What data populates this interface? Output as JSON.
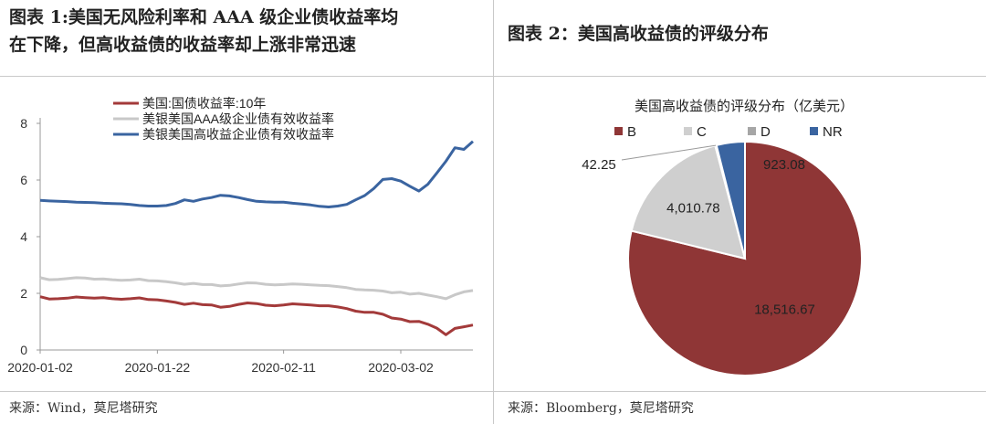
{
  "left_panel": {
    "title_line1": "图表 1:美国无风险利率和 AAA 级企业债收益率均",
    "title_line2": "在下降，但高收益债的收益率却上涨非常迅速",
    "source": "来源：Wind，莫尼塔研究"
  },
  "right_panel": {
    "title": "图表 2：美国高收益债的评级分布",
    "source": "来源：Bloomberg，莫尼塔研究"
  },
  "chart_data": [
    {
      "type": "line",
      "title": "",
      "xlabel": "",
      "ylabel": "",
      "ylim": [
        0,
        8
      ],
      "yticks": [
        "0",
        "2",
        "4",
        "6",
        "8"
      ],
      "xticks": [
        "2020-01-02",
        "2020-01-22",
        "2020-02-11",
        "2020-03-02"
      ],
      "grid": false,
      "legend_position": "top-left",
      "x": [
        "2020-01-02",
        "2020-01-03",
        "2020-01-06",
        "2020-01-07",
        "2020-01-08",
        "2020-01-09",
        "2020-01-10",
        "2020-01-13",
        "2020-01-14",
        "2020-01-15",
        "2020-01-16",
        "2020-01-17",
        "2020-01-21",
        "2020-01-22",
        "2020-01-23",
        "2020-01-24",
        "2020-01-27",
        "2020-01-28",
        "2020-01-29",
        "2020-01-30",
        "2020-01-31",
        "2020-02-03",
        "2020-02-04",
        "2020-02-05",
        "2020-02-06",
        "2020-02-07",
        "2020-02-10",
        "2020-02-11",
        "2020-02-12",
        "2020-02-13",
        "2020-02-14",
        "2020-02-18",
        "2020-02-19",
        "2020-02-20",
        "2020-02-21",
        "2020-02-24",
        "2020-02-25",
        "2020-02-26",
        "2020-02-27",
        "2020-02-28",
        "2020-03-02",
        "2020-03-03",
        "2020-03-04",
        "2020-03-05",
        "2020-03-06",
        "2020-03-09",
        "2020-03-10",
        "2020-03-11",
        "2020-03-12"
      ],
      "series": [
        {
          "name": "美国:国债收益率:10年",
          "color": "#a33a3a",
          "values": [
            1.88,
            1.8,
            1.81,
            1.83,
            1.87,
            1.85,
            1.83,
            1.85,
            1.81,
            1.79,
            1.81,
            1.84,
            1.78,
            1.77,
            1.73,
            1.68,
            1.61,
            1.65,
            1.6,
            1.59,
            1.51,
            1.54,
            1.61,
            1.66,
            1.64,
            1.58,
            1.56,
            1.59,
            1.63,
            1.61,
            1.59,
            1.56,
            1.56,
            1.52,
            1.46,
            1.37,
            1.33,
            1.33,
            1.26,
            1.13,
            1.09,
            1.0,
            1.01,
            0.91,
            0.77,
            0.54,
            0.76,
            0.82,
            0.88
          ]
        },
        {
          "name": "美银美国AAA级企业债有效收益率",
          "color": "#c8c8c8",
          "values": [
            2.55,
            2.48,
            2.49,
            2.52,
            2.55,
            2.54,
            2.5,
            2.51,
            2.48,
            2.46,
            2.47,
            2.5,
            2.45,
            2.44,
            2.41,
            2.37,
            2.32,
            2.35,
            2.31,
            2.31,
            2.26,
            2.28,
            2.33,
            2.37,
            2.36,
            2.32,
            2.3,
            2.31,
            2.33,
            2.32,
            2.3,
            2.28,
            2.27,
            2.24,
            2.2,
            2.14,
            2.12,
            2.11,
            2.08,
            2.02,
            2.04,
            1.97,
            2.0,
            1.94,
            1.88,
            1.81,
            1.95,
            2.05,
            2.1
          ]
        },
        {
          "name": "美银美国高收益企业债有效收益率",
          "color": "#3a64a0",
          "values": [
            5.28,
            5.26,
            5.25,
            5.24,
            5.22,
            5.21,
            5.2,
            5.18,
            5.17,
            5.16,
            5.14,
            5.1,
            5.08,
            5.08,
            5.1,
            5.17,
            5.3,
            5.25,
            5.33,
            5.38,
            5.46,
            5.44,
            5.38,
            5.31,
            5.25,
            5.23,
            5.22,
            5.22,
            5.18,
            5.15,
            5.12,
            5.07,
            5.05,
            5.08,
            5.14,
            5.3,
            5.45,
            5.7,
            6.02,
            6.05,
            5.96,
            5.78,
            5.61,
            5.85,
            6.25,
            6.66,
            7.14,
            7.08,
            7.36
          ]
        }
      ]
    },
    {
      "type": "pie",
      "title": "美国高收益债的评级分布（亿美元）",
      "legend_position": "top",
      "categories": [
        "B",
        "C",
        "D",
        "NR"
      ],
      "values": [
        18516.67,
        4010.78,
        42.25,
        923.08
      ],
      "labels": [
        "18,516.67",
        "4,010.78",
        "42.25",
        "923.08"
      ],
      "colors": [
        "#8f3636",
        "#cfcfcf",
        "#a6a6a6",
        "#3a64a0"
      ]
    }
  ]
}
